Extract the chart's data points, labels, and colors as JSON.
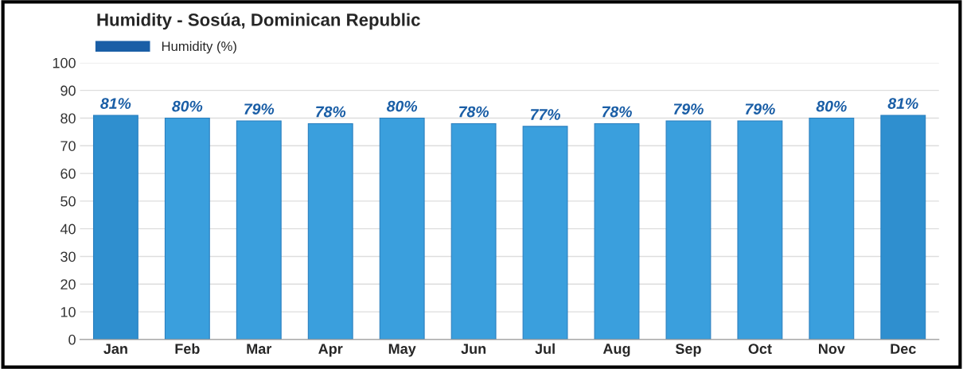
{
  "chart_data": {
    "type": "bar",
    "title": "Humidity - Sosúa, Dominican Republic",
    "categories": [
      "Jan",
      "Feb",
      "Mar",
      "Apr",
      "May",
      "Jun",
      "Jul",
      "Aug",
      "Sep",
      "Oct",
      "Nov",
      "Dec"
    ],
    "series": [
      {
        "name": "Humidity (%)",
        "color": "#1a5ea6",
        "values": [
          81,
          80,
          79,
          78,
          80,
          78,
          77,
          78,
          79,
          79,
          80,
          81
        ],
        "colors": [
          "#2f8fcf",
          "#3a9fdd",
          "#3a9fdd",
          "#3a9fdd",
          "#3a9fdd",
          "#3a9fdd",
          "#3a9fdd",
          "#3a9fdd",
          "#3a9fdd",
          "#3a9fdd",
          "#3a9fdd",
          "#2f8fcf"
        ],
        "value_labels": [
          "81%",
          "80%",
          "79%",
          "78%",
          "80%",
          "78%",
          "77%",
          "78%",
          "79%",
          "79%",
          "80%",
          "81%"
        ]
      }
    ],
    "ylim": [
      0,
      100
    ],
    "yticks": [
      0,
      10,
      20,
      30,
      40,
      50,
      60,
      70,
      80,
      90,
      100
    ],
    "grid": "y",
    "legend": "top left"
  }
}
